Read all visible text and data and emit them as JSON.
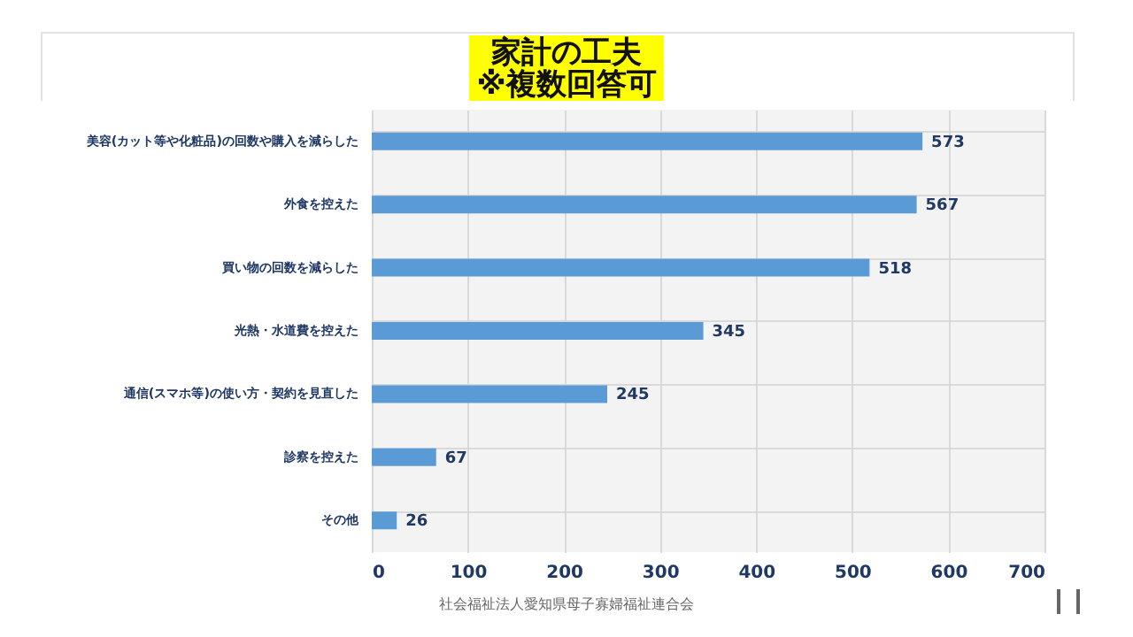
{
  "chart_data": {
    "type": "bar",
    "orientation": "horizontal",
    "title": "家計の工夫",
    "subtitle": "※複数回答可",
    "categories": [
      "美容(カット等や化粧品)の回数や購入を減らした",
      "外食を控えた",
      "買い物の回数を減らした",
      "光熱・水道費を控えた",
      "通信(スマホ等)の使い方・契約を見直した",
      "診察を控えた",
      "その他"
    ],
    "values": [
      573,
      567,
      518,
      345,
      245,
      67,
      26
    ],
    "color": "#5b9bd5",
    "xlim": [
      0,
      700
    ],
    "xticks": [
      0,
      100,
      200,
      300,
      400,
      500,
      600,
      700
    ],
    "grid": true,
    "data_labels": true,
    "annotations": [
      "社会福祉法人愛知県母子寡婦福祉連合会"
    ]
  }
}
